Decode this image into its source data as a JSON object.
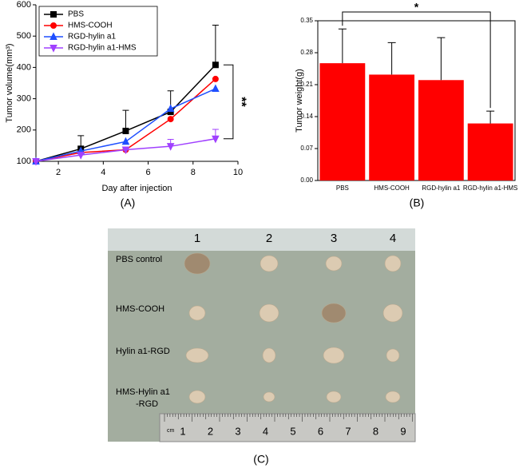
{
  "chart_data": [
    {
      "type": "line",
      "panel": "(A)",
      "xlabel": "Day after injection",
      "ylabel": "Tumor volume(mm³)",
      "xlim": [
        1,
        10
      ],
      "xticks": [
        2,
        4,
        6,
        8,
        10
      ],
      "ylim": [
        100,
        600
      ],
      "yticks": [
        100,
        200,
        300,
        400,
        500,
        600
      ],
      "x": [
        1,
        3,
        5,
        7,
        9
      ],
      "legend": "upper left",
      "series": [
        {
          "name": "PBS",
          "color": "#000000",
          "marker": "square",
          "values": [
            100,
            140,
            197,
            258,
            408
          ],
          "errors": [
            null,
            42,
            66,
            67,
            127
          ]
        },
        {
          "name": "HMS-COOH",
          "color": "#ff0000",
          "marker": "circle",
          "values": [
            100,
            128,
            137,
            235,
            363
          ],
          "errors": [
            null,
            null,
            null,
            null,
            null
          ]
        },
        {
          "name": "RGD-hylin a1",
          "color": "#1f4fff",
          "marker": "triangle",
          "values": [
            100,
            133,
            163,
            268,
            332
          ],
          "errors": [
            null,
            null,
            null,
            null,
            null
          ]
        },
        {
          "name": "RGD-hylin a1-HMS",
          "color": "#a040ff",
          "marker": "triangle-down",
          "values": [
            100,
            120,
            137,
            148,
            172
          ],
          "errors": [
            null,
            null,
            null,
            22,
            30
          ]
        }
      ],
      "annotation": "**"
    },
    {
      "type": "bar",
      "panel": "(B)",
      "ylabel": "Tumor weight(g)",
      "categories": [
        "PBS",
        "HMS-COOH",
        "RGD-hylin a1",
        "RGD-hylin a1-HMS"
      ],
      "values": [
        0.257,
        0.232,
        0.22,
        0.125
      ],
      "errors": [
        0.075,
        0.07,
        0.093,
        0.027
      ],
      "color": "#ff0000",
      "ylim": [
        0,
        0.35
      ],
      "yticks": [
        {
          "value": 0,
          "label": "0.00"
        },
        0.07,
        0.14,
        0.21,
        0.28,
        0.35
      ],
      "annotation": "*"
    }
  ],
  "photo": {
    "panel": "(C)",
    "columns": [
      "1",
      "2",
      "3",
      "4"
    ],
    "rows": [
      "PBS control",
      "HMS-COOH",
      "Hylin a1-RGD",
      [
        "HMS-Hylin a1",
        "-RGD"
      ]
    ],
    "ruler": {
      "unit": "cm",
      "numbers": [
        "1",
        "2",
        "3",
        "4",
        "5",
        "6",
        "7",
        "8",
        "9"
      ]
    }
  }
}
